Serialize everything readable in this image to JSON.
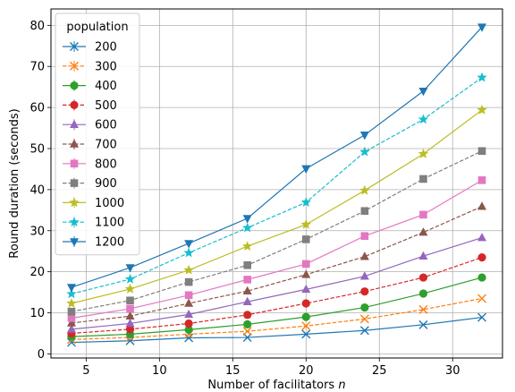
{
  "chart_data": {
    "type": "line",
    "xlabel": "Number of facilitators",
    "xlabel_var": "n",
    "ylabel": "Round duration (seconds)",
    "xlim": [
      2.6,
      33.4
    ],
    "ylim": [
      -1,
      84
    ],
    "xticks": [
      5,
      10,
      15,
      20,
      25,
      30
    ],
    "yticks": [
      0,
      10,
      20,
      30,
      40,
      50,
      60,
      70,
      80
    ],
    "grid": true,
    "legend": {
      "title": "population",
      "placement": "top-left"
    },
    "x": [
      4,
      8,
      12,
      16,
      20,
      24,
      28,
      32
    ],
    "series": [
      {
        "name": "200",
        "color": "#1f77b4",
        "marker": "x",
        "dashed": false,
        "values": [
          2.8,
          3.2,
          3.9,
          4.0,
          4.8,
          5.7,
          7.1,
          8.9
        ]
      },
      {
        "name": "300",
        "color": "#ff7f0e",
        "marker": "x",
        "dashed": true,
        "values": [
          3.5,
          4.0,
          4.8,
          5.5,
          6.8,
          8.5,
          10.8,
          13.5
        ]
      },
      {
        "name": "400",
        "color": "#2ca02c",
        "marker": "circle",
        "dashed": false,
        "values": [
          4.2,
          4.8,
          5.9,
          7.2,
          9.0,
          11.3,
          14.7,
          18.6
        ]
      },
      {
        "name": "500",
        "color": "#d62728",
        "marker": "circle",
        "dashed": true,
        "values": [
          5.0,
          6.0,
          7.4,
          9.5,
          12.3,
          15.2,
          18.6,
          23.5
        ]
      },
      {
        "name": "600",
        "color": "#9467bd",
        "marker": "triangle",
        "dashed": false,
        "values": [
          6.0,
          7.4,
          9.6,
          12.7,
          15.7,
          18.9,
          23.8,
          28.3
        ]
      },
      {
        "name": "700",
        "color": "#8c564b",
        "marker": "triangle",
        "dashed": true,
        "values": [
          7.5,
          9.2,
          12.3,
          15.3,
          19.3,
          23.7,
          29.6,
          35.9
        ]
      },
      {
        "name": "800",
        "color": "#e377c2",
        "marker": "square",
        "dashed": false,
        "values": [
          8.7,
          11.0,
          14.3,
          18.1,
          21.9,
          28.7,
          33.9,
          42.3
        ]
      },
      {
        "name": "900",
        "color": "#7f7f7f",
        "marker": "square",
        "dashed": true,
        "values": [
          10.3,
          13.0,
          17.5,
          21.6,
          27.9,
          34.8,
          42.6,
          49.4
        ]
      },
      {
        "name": "1000",
        "color": "#bcbd22",
        "marker": "star",
        "dashed": false,
        "values": [
          12.3,
          15.8,
          20.4,
          26.2,
          31.5,
          39.8,
          48.7,
          59.4
        ]
      },
      {
        "name": "1100",
        "color": "#17becf",
        "marker": "star",
        "dashed": true,
        "values": [
          14.6,
          18.2,
          24.6,
          30.7,
          36.9,
          49.2,
          57.1,
          67.3
        ]
      },
      {
        "name": "1200",
        "color": "#1f77b4",
        "marker": "tri-down",
        "dashed": false,
        "values": [
          16.2,
          21.0,
          26.9,
          33.0,
          45.1,
          53.3,
          64.0,
          79.6
        ]
      }
    ]
  }
}
